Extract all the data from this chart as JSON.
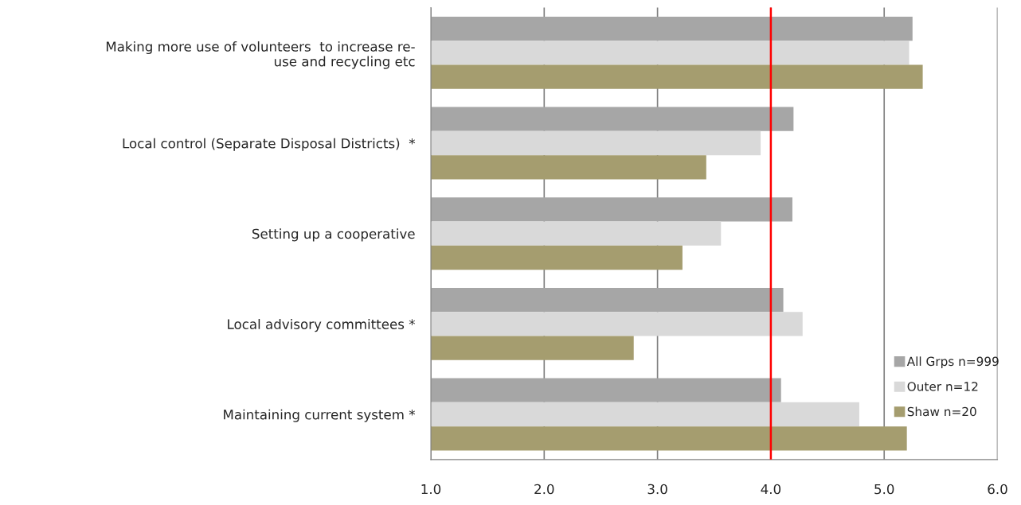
{
  "chart_data": {
    "type": "bar",
    "orientation": "horizontal",
    "categories": [
      "Making more use of volunteers  to increase re-\nuse and recycling etc",
      "Local control (Separate Disposal Districts)  *",
      "Setting up a cooperative",
      "Local advisory committees *",
      "Maintaining current system *"
    ],
    "series": [
      {
        "name": "All Grps n=999",
        "color": "#a6a6a6",
        "values": [
          5.25,
          4.2,
          4.19,
          4.11,
          4.09
        ]
      },
      {
        "name": "Outer n=12",
        "color": "#d9d9d9",
        "values": [
          5.22,
          3.91,
          3.56,
          4.28,
          4.78
        ]
      },
      {
        "name": "Shaw n=20",
        "color": "#a59d6f",
        "values": [
          5.34,
          3.43,
          3.22,
          2.79,
          5.2
        ]
      }
    ],
    "xlim": [
      1.0,
      6.0
    ],
    "xticks": [
      {
        "value": 1,
        "label": "1.0"
      },
      {
        "value": 2,
        "label": "2.0"
      },
      {
        "value": 3,
        "label": "3.0"
      },
      {
        "value": 4,
        "label": "4.0"
      },
      {
        "value": 5,
        "label": "5.0"
      },
      {
        "value": 6,
        "label": "6.0"
      }
    ],
    "ref_lines": [
      {
        "axis": "x",
        "value": 4.0,
        "color": "#ff0000"
      }
    ],
    "grid": "x",
    "legend": "right"
  }
}
